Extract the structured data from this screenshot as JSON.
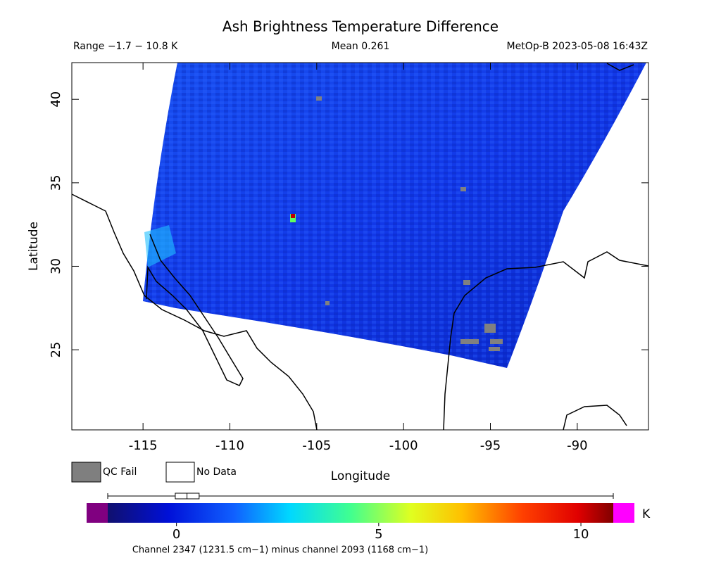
{
  "title": "Ash Brightness Temperature Difference",
  "range_label": "Range −1.7 − 10.8 K",
  "mean_label": "Mean 0.261",
  "source_label": "MetOp-B 2023-05-08 16:43Z",
  "map": {
    "xlabel": "Longitude",
    "ylabel": "Latitude",
    "xlim": [
      -119.1,
      -85.9
    ],
    "ylim": [
      20.2,
      42.2
    ],
    "xticks": [
      -115,
      -110,
      -105,
      -100,
      -95,
      -90
    ],
    "yticks": [
      25,
      30,
      35,
      40
    ]
  },
  "legend": {
    "qc_fail": "QC Fail",
    "no_data": "No Data"
  },
  "colorbar": {
    "lim": [
      -1.7,
      10.8
    ],
    "ticks": [
      0,
      5,
      10
    ],
    "unit": "K",
    "caption": "Channel 2347 (1231.5 cm−1) minus channel 2093 (1168 cm−1)",
    "box": {
      "min": -1.7,
      "q1": -0.03,
      "median": 0.26,
      "q3": 0.56,
      "max": 10.8
    }
  }
}
